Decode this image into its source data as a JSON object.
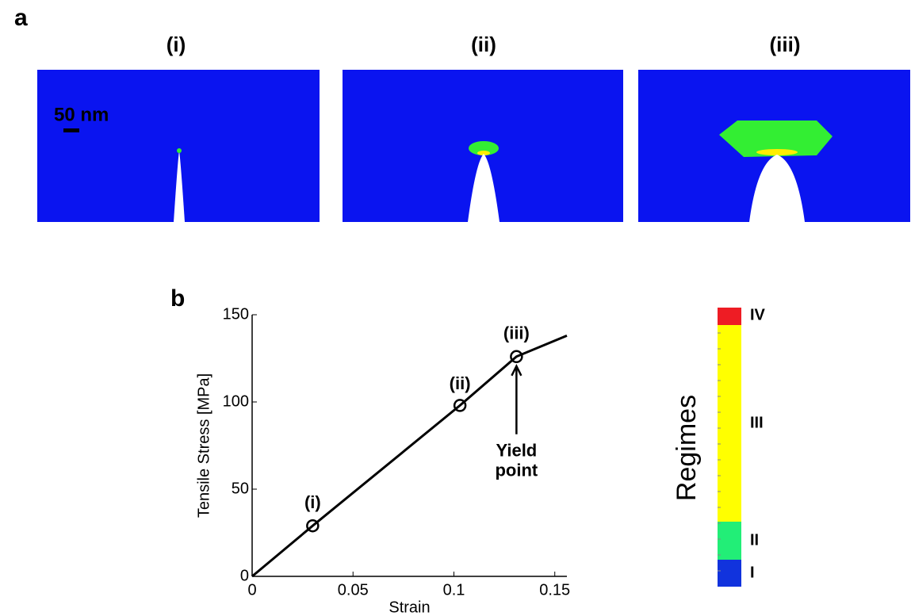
{
  "panel_a": {
    "label": "a",
    "panels": [
      {
        "title": "(i)"
      },
      {
        "title": "(ii)"
      },
      {
        "title": "(iii)"
      }
    ],
    "scale_bar": "50 nm"
  },
  "panel_b": {
    "label": "b"
  },
  "chart_data": {
    "type": "line",
    "xlabel": "Strain",
    "ylabel": "Tensile Stress [MPa]",
    "x": [
      0,
      0.03,
      0.103,
      0.131,
      0.156
    ],
    "series": [
      {
        "color": "#000000",
        "values": [
          0,
          29,
          98,
          126,
          138
        ]
      }
    ],
    "xlim": [
      0,
      0.156
    ],
    "ylim": [
      0,
      150
    ],
    "xticks": [
      0,
      0.05,
      0.1,
      0.15
    ],
    "yticks": [
      0,
      50,
      100,
      150
    ],
    "annotations": [
      {
        "text": "(i)",
        "x": 0.03,
        "y": 29
      },
      {
        "text": "(ii)",
        "x": 0.103,
        "y": 98
      },
      {
        "text": "(iii)",
        "x": 0.131,
        "y": 126
      }
    ],
    "arrow_annotation": {
      "lines": [
        "Yield",
        "point"
      ],
      "x": 0.131,
      "y": 126
    }
  },
  "colorbar": {
    "title": "Regimes",
    "regimes": [
      {
        "label": "IV",
        "color": "#ee1c24"
      },
      {
        "label": "III",
        "color": "#ffff00"
      },
      {
        "label": "II",
        "color": "#22ee77"
      },
      {
        "label": "I",
        "color": "#1133dd"
      }
    ]
  }
}
